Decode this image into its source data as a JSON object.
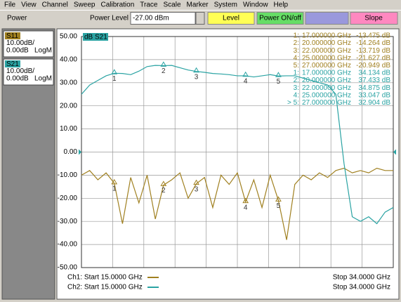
{
  "menu": [
    "File",
    "View",
    "Channel",
    "Sweep",
    "Calibration",
    "Trace",
    "Scale",
    "Marker",
    "System",
    "Window",
    "Help"
  ],
  "toolbar": {
    "section": "Power",
    "field_label": "Power Level",
    "field_value": "-27.00 dBm",
    "buttons": [
      "Level",
      "Power ON/off",
      "Slope"
    ]
  },
  "traces": [
    {
      "name": "S11",
      "scale": "10.00dB/",
      "ref": "0.00dB",
      "format": "LogM"
    },
    {
      "name": "S21",
      "scale": "10.00dB/",
      "ref": "0.00dB",
      "format": "LogM"
    }
  ],
  "marker_table": [
    [
      "1:",
      "17.000000 GHz",
      "-13.475 dB"
    ],
    [
      "2:",
      "20.000000 GHz",
      "-14.264 dB"
    ],
    [
      "3:",
      "22.000000 GHz",
      "-13.719 dB"
    ],
    [
      "4:",
      "25.000000 GHz",
      "-21.627 dB"
    ],
    [
      "5:",
      "27.000000 GHz",
      "-20.949 dB"
    ],
    [
      "1:",
      "17.000000 GHz",
      "34.134 dB"
    ],
    [
      "2:",
      "20.000000 GHz",
      "37.433 dB"
    ],
    [
      "3:",
      "22.000000 GHz",
      "34.875 dB"
    ],
    [
      "4:",
      "25.000000 GHz",
      "33.047 dB"
    ],
    [
      "> 5:",
      "27.000000 GHz",
      "32.904 dB"
    ]
  ],
  "footer": [
    [
      "Ch1: Start  15.0000 GHz",
      "Stop  34.0000 GHz"
    ],
    [
      "Ch2: Start  15.0000 GHz",
      "Stop  34.0000 GHz"
    ]
  ],
  "chart_data": {
    "type": "line",
    "trace_label": "dB S21",
    "grid": true,
    "x": [
      15,
      15.5,
      16,
      16.5,
      17,
      17.5,
      18,
      18.5,
      19,
      19.5,
      20,
      20.5,
      21,
      21.5,
      22,
      22.5,
      23,
      23.5,
      24,
      24.5,
      25,
      25.5,
      26,
      26.5,
      27,
      27.5,
      28,
      28.5,
      29,
      29.5,
      30,
      30.5,
      31,
      31.5,
      32,
      32.5,
      33,
      33.5,
      34
    ],
    "xlim": [
      15,
      34
    ],
    "ylim": [
      -50,
      50
    ],
    "yticks": [
      {
        "value": 50,
        "label": "50.00"
      },
      {
        "value": 40,
        "label": "40.00"
      },
      {
        "value": 30,
        "label": "30.00"
      },
      {
        "value": 20,
        "label": "20.00"
      },
      {
        "value": 10,
        "label": "10.00"
      },
      {
        "value": 0,
        "label": "0.00"
      },
      {
        "value": -10,
        "label": "-10.00"
      },
      {
        "value": -20,
        "label": "-20.00"
      },
      {
        "value": -30,
        "label": "-30.00"
      },
      {
        "value": -40,
        "label": "-40.00"
      },
      {
        "value": -50,
        "label": "-50.00"
      }
    ],
    "series": [
      {
        "name": "S11",
        "color": "#a08020",
        "values": [
          -10,
          -8,
          -12,
          -9,
          -13.5,
          -31,
          -11,
          -22,
          -10,
          -29,
          -14.3,
          -12,
          -9,
          -20,
          -13.7,
          -11,
          -24,
          -10,
          -14,
          -9,
          -21.6,
          -12,
          -24,
          -10,
          -20.9,
          -38,
          -14,
          -10,
          -12,
          -9,
          -11,
          -8,
          -7,
          -9,
          -8,
          -9,
          -7,
          -8,
          -8
        ]
      },
      {
        "name": "S21",
        "color": "#2aa3a3",
        "values": [
          25,
          29,
          31,
          33,
          34.1,
          34,
          33.5,
          35,
          37,
          37.5,
          37.4,
          37.5,
          36.5,
          35.5,
          34.9,
          34.5,
          34,
          33.8,
          33.5,
          33,
          33,
          32.5,
          33,
          33.5,
          32.9,
          33,
          33,
          32,
          31,
          30,
          29,
          25,
          -5,
          -28,
          -30,
          -28,
          -31,
          -26,
          -24
        ]
      }
    ],
    "markers": {
      "labels": [
        "1",
        "2",
        "3",
        "4",
        "5"
      ],
      "x": [
        17,
        20,
        22,
        25,
        27
      ],
      "s11": [
        -13.475,
        -14.264,
        -13.719,
        -21.627,
        -20.949
      ],
      "s21": [
        34.134,
        37.433,
        34.875,
        33.047,
        32.904
      ]
    }
  }
}
